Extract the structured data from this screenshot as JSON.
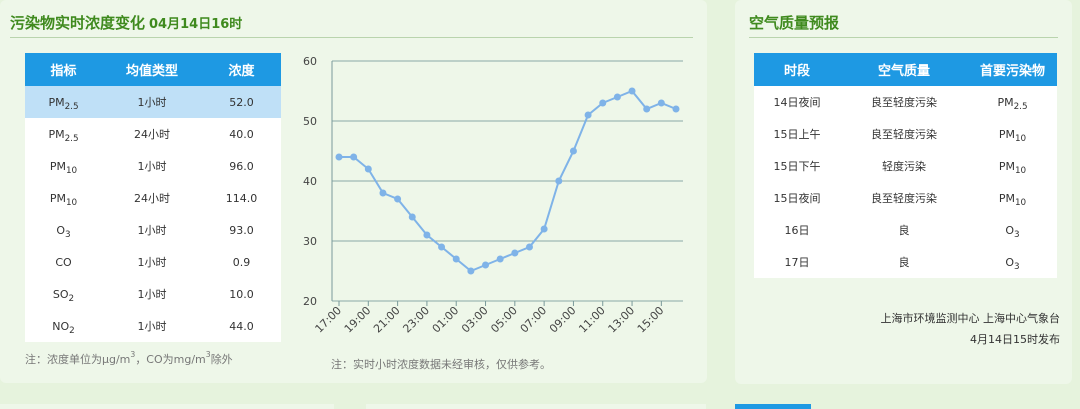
{
  "left_panel": {
    "title": "污染物实时浓度变化",
    "timestamp": "04月14日16时",
    "table": {
      "headers": [
        "指标",
        "均值类型",
        "浓度"
      ],
      "rows": [
        {
          "base": "PM",
          "sub": "2.5",
          "avg": "1小时",
          "value": "52.0",
          "highlighted": true
        },
        {
          "base": "PM",
          "sub": "2.5",
          "avg": "24小时",
          "value": "40.0"
        },
        {
          "base": "PM",
          "sub": "10",
          "avg": "1小时",
          "value": "96.0"
        },
        {
          "base": "PM",
          "sub": "10",
          "avg": "24小时",
          "value": "114.0"
        },
        {
          "base": "O",
          "sub": "3",
          "avg": "1小时",
          "value": "93.0"
        },
        {
          "base": "CO",
          "sub": "",
          "avg": "1小时",
          "value": "0.9"
        },
        {
          "base": "SO",
          "sub": "2",
          "avg": "1小时",
          "value": "10.0"
        },
        {
          "base": "NO",
          "sub": "2",
          "avg": "1小时",
          "value": "44.0"
        }
      ]
    },
    "unit_note": {
      "prefix": "注：浓度单位为μg/m",
      "sup1": "3",
      "middle": "，CO为mg/m",
      "sup2": "3",
      "suffix": "除外"
    },
    "chart_note": "注：实时小时浓度数据未经审核，仅供参考。"
  },
  "right_panel": {
    "title": "空气质量预报",
    "table": {
      "headers": [
        "时段",
        "空气质量",
        "首要污染物"
      ],
      "rows": [
        {
          "period": "14日夜间",
          "quality": "良至轻度污染",
          "base": "PM",
          "sub": "2.5"
        },
        {
          "period": "15日上午",
          "quality": "良至轻度污染",
          "base": "PM",
          "sub": "10"
        },
        {
          "period": "15日下午",
          "quality": "轻度污染",
          "base": "PM",
          "sub": "10"
        },
        {
          "period": "15日夜间",
          "quality": "良至轻度污染",
          "base": "PM",
          "sub": "10"
        },
        {
          "period": "16日",
          "quality": "良",
          "base": "O",
          "sub": "3"
        },
        {
          "period": "17日",
          "quality": "良",
          "base": "O",
          "sub": "3"
        }
      ]
    },
    "credit_line1": "上海市环境监测中心 上海中心气象台",
    "credit_line2": "4月14日15时发布"
  },
  "colors": {
    "accent_blue": "#1e99e3",
    "title_green": "#3f8a1e",
    "highlight_row": "#bfe0f7",
    "line": "#7fb3e8"
  },
  "chart_data": {
    "type": "line",
    "x": [
      "17:00",
      "18:00",
      "19:00",
      "20:00",
      "21:00",
      "22:00",
      "23:00",
      "00:00",
      "01:00",
      "02:00",
      "03:00",
      "04:00",
      "05:00",
      "06:00",
      "07:00",
      "08:00",
      "09:00",
      "10:00",
      "11:00",
      "12:00",
      "13:00",
      "14:00",
      "15:00",
      "16:00"
    ],
    "tick_labels": [
      "17:00",
      "19:00",
      "21:00",
      "23:00",
      "01:00",
      "03:00",
      "05:00",
      "07:00",
      "09:00",
      "11:00",
      "13:00",
      "15:00"
    ],
    "values": [
      44,
      44,
      42,
      38,
      37,
      34,
      31,
      29,
      27,
      25,
      26,
      27,
      28,
      29,
      32,
      40,
      45,
      51,
      53,
      54,
      55,
      52,
      53,
      52
    ],
    "ylim": [
      20,
      60
    ],
    "yticks": [
      20,
      30,
      40,
      50,
      60
    ],
    "grid": true
  }
}
